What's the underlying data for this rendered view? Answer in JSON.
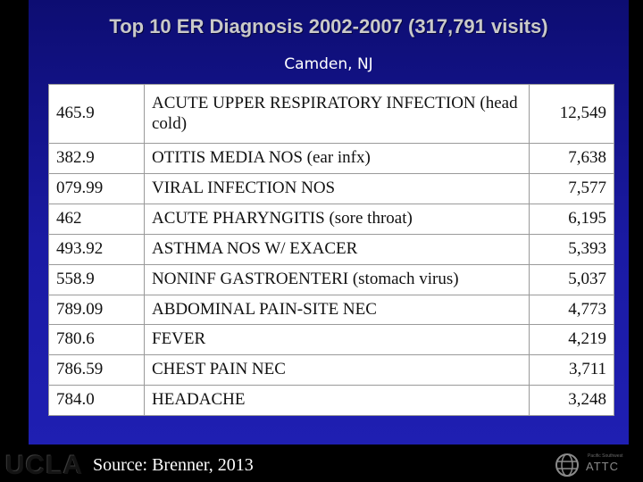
{
  "slide": {
    "title": "Top 10 ER Diagnosis 2002-2007 (317,791 visits)",
    "subtitle": "Camden, NJ"
  },
  "table": {
    "rows": [
      {
        "code": "465.9",
        "description": "ACUTE UPPER RESPIRATORY INFECTION (head cold)",
        "count": "12,549"
      },
      {
        "code": "382.9",
        "description": "OTITIS MEDIA NOS (ear infx)",
        "count": "7,638"
      },
      {
        "code": "079.99",
        "description": "VIRAL INFECTION NOS",
        "count": "7,577"
      },
      {
        "code": "462",
        "description": "ACUTE PHARYNGITIS (sore throat)",
        "count": "6,195"
      },
      {
        "code": "493.92",
        "description": "ASTHMA NOS W/ EXACER",
        "count": "5,393"
      },
      {
        "code": "558.9",
        "description": "NONINF GASTROENTERI (stomach virus)",
        "count": "5,037"
      },
      {
        "code": "789.09",
        "description": "ABDOMINAL PAIN-SITE NEC",
        "count": "4,773"
      },
      {
        "code": "780.6",
        "description": "FEVER",
        "count": "4,219"
      },
      {
        "code": "786.59",
        "description": "CHEST PAIN NEC",
        "count": "3,711"
      },
      {
        "code": "784.0",
        "description": "HEADACHE",
        "count": "3,248"
      }
    ]
  },
  "footer": {
    "source": "Source: Brenner, 2013",
    "left_logo": "UCLA",
    "right_logo": "ATTC",
    "right_logo_subtext": "Pacific Southwest",
    "right_logo_icon": "globe-icon"
  }
}
